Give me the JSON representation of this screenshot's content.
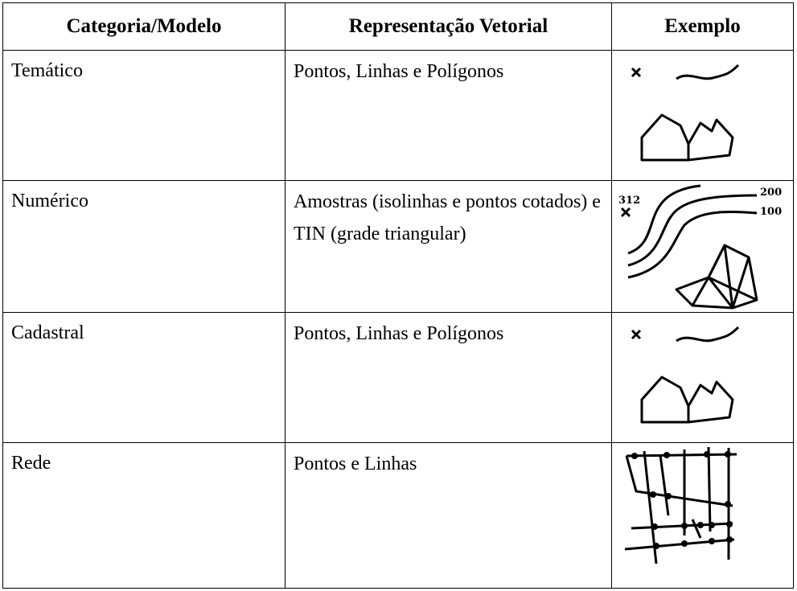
{
  "table": {
    "header": [
      "Categoria/Modelo",
      "Representação Vetorial",
      "Exemplo"
    ],
    "rows": [
      {
        "category": "Temático",
        "representation": [
          "Pontos, Linhas e Polígonos"
        ]
      },
      {
        "category": "Numérico",
        "representation": [
          "Amostras (isolinhas e pontos cotados) e",
          "TIN (grade triangular)"
        ],
        "example_labels": [
          "312",
          "200",
          "100"
        ]
      },
      {
        "category": "Cadastral",
        "representation": [
          "Pontos, Linhas e Polígonos"
        ]
      },
      {
        "category": "Rede",
        "representation": [
          "Pontos e Linhas"
        ]
      }
    ]
  }
}
